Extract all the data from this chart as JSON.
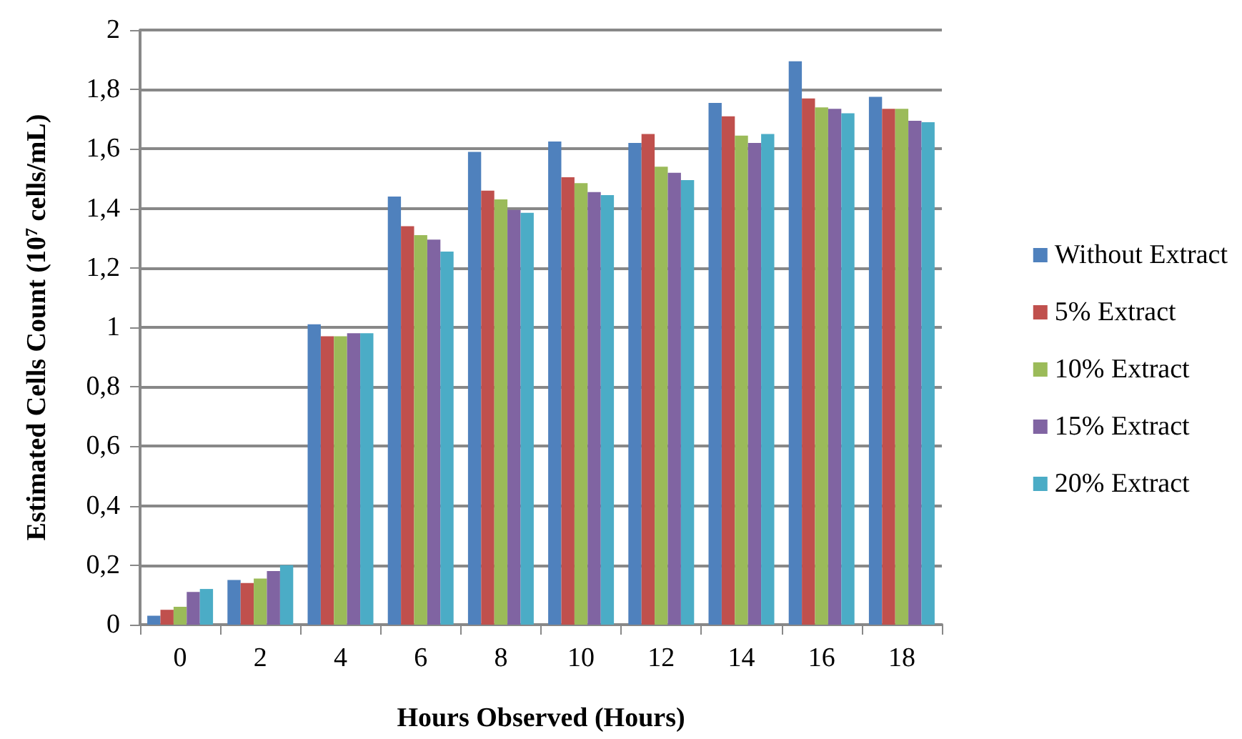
{
  "chart_data": {
    "type": "bar",
    "xlabel": "Hours Observed (Hours)",
    "ylabel": "Estimated Cells Count (10$^{7}$ cells/mL)",
    "categories": [
      "0",
      "2",
      "4",
      "6",
      "8",
      "10",
      "12",
      "14",
      "16",
      "18"
    ],
    "series": [
      {
        "name": "Without Extract",
        "color": "#4f81bd",
        "values": [
          0.03,
          0.15,
          1.01,
          1.44,
          1.59,
          1.625,
          1.62,
          1.755,
          1.895,
          1.775
        ]
      },
      {
        "name": "5% Extract",
        "color": "#c0504d",
        "values": [
          0.05,
          0.14,
          0.97,
          1.34,
          1.46,
          1.505,
          1.65,
          1.71,
          1.77,
          1.735
        ]
      },
      {
        "name": "10% Extract",
        "color": "#9bbb59",
        "values": [
          0.06,
          0.155,
          0.97,
          1.31,
          1.43,
          1.485,
          1.54,
          1.645,
          1.74,
          1.735
        ]
      },
      {
        "name": "15% Extract",
        "color": "#8064a2",
        "values": [
          0.11,
          0.18,
          0.98,
          1.295,
          1.395,
          1.455,
          1.52,
          1.62,
          1.735,
          1.695
        ]
      },
      {
        "name": "20% Extract",
        "color": "#4bacc6",
        "values": [
          0.12,
          0.2,
          0.98,
          1.255,
          1.385,
          1.445,
          1.495,
          1.65,
          1.72,
          1.69
        ]
      }
    ],
    "ylim": [
      0,
      2
    ],
    "yticks": [
      0,
      {
        "value": 0.2,
        "label": "0,2"
      },
      {
        "value": 0.4,
        "label": "0,4"
      },
      {
        "value": 0.6,
        "label": "0,6"
      },
      {
        "value": 0.8,
        "label": "0,8"
      },
      1,
      {
        "value": 1.2,
        "label": "1,2"
      },
      {
        "value": 1.4,
        "label": "1,4"
      },
      {
        "value": 1.6,
        "label": "1,6"
      },
      {
        "value": 1.8,
        "label": "1,8"
      },
      2
    ],
    "grid": "y",
    "legend": "right"
  }
}
